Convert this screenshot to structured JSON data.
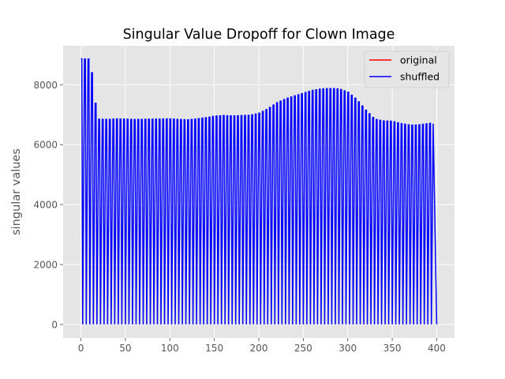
{
  "chart_data": {
    "type": "line",
    "title": "Singular Value Dropoff for Clown Image",
    "xlabel": "",
    "ylabel": "singular values",
    "xlim": [
      -20,
      420
    ],
    "ylim": [
      -450,
      9300
    ],
    "xticks": [
      0,
      50,
      100,
      150,
      200,
      250,
      300,
      350,
      400
    ],
    "yticks": [
      0,
      2000,
      4000,
      6000,
      8000
    ],
    "grid": true,
    "legend_position": "top-right",
    "series": [
      {
        "name": "original",
        "color": "#ff0000",
        "description_points": [
          [
            0,
            0
          ]
        ]
      },
      {
        "name": "shuffled",
        "color": "#0000ff",
        "envelope": {
          "period": 4,
          "x_end": 400,
          "peaks": [
            [
              0,
              8870
            ],
            [
              4,
              8860
            ],
            [
              8,
              8860
            ],
            [
              12,
              8400
            ],
            [
              16,
              7380
            ],
            [
              20,
              6850
            ],
            [
              30,
              6840
            ],
            [
              40,
              6860
            ],
            [
              60,
              6840
            ],
            [
              80,
              6850
            ],
            [
              100,
              6860
            ],
            [
              110,
              6840
            ],
            [
              120,
              6830
            ],
            [
              130,
              6860
            ],
            [
              140,
              6900
            ],
            [
              150,
              6950
            ],
            [
              160,
              6970
            ],
            [
              170,
              6960
            ],
            [
              180,
              6970
            ],
            [
              190,
              6980
            ],
            [
              200,
              7050
            ],
            [
              210,
              7200
            ],
            [
              220,
              7400
            ],
            [
              230,
              7530
            ],
            [
              240,
              7630
            ],
            [
              250,
              7720
            ],
            [
              260,
              7810
            ],
            [
              270,
              7860
            ],
            [
              280,
              7870
            ],
            [
              290,
              7860
            ],
            [
              300,
              7750
            ],
            [
              310,
              7500
            ],
            [
              320,
              7150
            ],
            [
              330,
              6850
            ],
            [
              340,
              6790
            ],
            [
              350,
              6780
            ],
            [
              360,
              6700
            ],
            [
              370,
              6650
            ],
            [
              380,
              6660
            ],
            [
              392,
              6710
            ],
            [
              396,
              6700
            ]
          ],
          "final_x": 400,
          "final_y": 0
        }
      }
    ]
  }
}
